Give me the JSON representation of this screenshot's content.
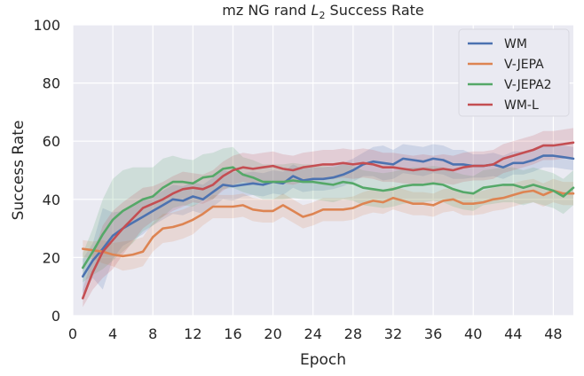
{
  "chart_data": {
    "type": "line",
    "title_prefix": "mz NG rand ",
    "title_math": "L",
    "title_sub": "2",
    "title_suffix": " Success Rate",
    "title": "mz NG rand L2 Success Rate",
    "xlabel": "Epoch",
    "ylabel": "Success Rate",
    "xlim": [
      0,
      50
    ],
    "ylim": [
      0,
      100
    ],
    "xticks": [
      0,
      4,
      8,
      12,
      16,
      20,
      24,
      28,
      32,
      36,
      40,
      44,
      48
    ],
    "yticks": [
      0,
      20,
      40,
      60,
      80,
      100
    ],
    "grid": true,
    "legend_position": "top-right",
    "x": [
      1,
      2,
      3,
      4,
      5,
      6,
      7,
      8,
      9,
      10,
      11,
      12,
      13,
      14,
      15,
      16,
      17,
      18,
      19,
      20,
      21,
      22,
      23,
      24,
      25,
      26,
      27,
      28,
      29,
      30,
      31,
      32,
      33,
      34,
      35,
      36,
      37,
      38,
      39,
      40,
      41,
      42,
      43,
      44,
      45,
      46,
      47,
      48,
      49,
      50
    ],
    "series": [
      {
        "name": "WM",
        "color": "#4c72b0",
        "values": [
          13.5,
          19,
          23,
          27.5,
          30,
          32,
          34,
          36,
          38,
          40,
          39.5,
          41,
          40,
          42.5,
          45,
          44.5,
          45,
          45.5,
          45,
          46,
          45.5,
          48,
          46.5,
          47,
          47,
          47.5,
          48.5,
          50,
          52,
          53,
          52.5,
          52,
          54,
          53.5,
          53,
          54,
          53.5,
          52,
          52,
          51.5,
          51.5,
          52,
          51,
          52.5,
          52.5,
          53.5,
          55,
          55,
          54.5,
          54
        ],
        "band": [
          6,
          6,
          14,
          8,
          6,
          6,
          6,
          5,
          5,
          5,
          5,
          5,
          5,
          5,
          5,
          5,
          4,
          4,
          4,
          4,
          4,
          4,
          4,
          4,
          4,
          4,
          4,
          4,
          4,
          5,
          6,
          5,
          5,
          5,
          5,
          5,
          5,
          5,
          5,
          4,
          4,
          4,
          4,
          4,
          4,
          4,
          4,
          4,
          4,
          4
        ]
      },
      {
        "name": "V-JEPA",
        "color": "#dd8452",
        "values": [
          23,
          22.5,
          22,
          21,
          20.5,
          21,
          22,
          27,
          30,
          30.5,
          31.5,
          33,
          35,
          37.5,
          37.5,
          37.5,
          38,
          36.5,
          36,
          36,
          38,
          36,
          34,
          35,
          36.5,
          36.5,
          36.5,
          37,
          38.5,
          39.5,
          39,
          40.5,
          39.5,
          38.5,
          38.5,
          38,
          39.5,
          40,
          38.5,
          38.5,
          39,
          40,
          40.5,
          41.5,
          42.5,
          43,
          41.5,
          43,
          42,
          42
        ],
        "band": [
          3,
          3,
          4,
          4,
          5,
          5,
          5,
          5,
          5,
          5,
          5,
          5,
          4,
          4,
          4,
          4,
          4,
          4,
          4,
          4,
          4,
          4,
          4,
          4,
          4,
          4,
          4,
          4,
          4,
          4,
          4,
          4,
          4,
          4,
          4,
          4,
          4,
          4,
          4,
          4,
          4,
          4,
          4,
          4,
          4,
          4,
          4,
          4,
          4,
          4
        ]
      },
      {
        "name": "V-JEPA2",
        "color": "#55a868",
        "values": [
          16.5,
          22,
          28,
          33,
          36,
          38,
          40,
          41,
          44,
          46,
          46,
          45.5,
          47.5,
          48,
          50.5,
          51,
          48.5,
          47.5,
          46,
          46,
          46,
          46.5,
          46,
          46,
          45.5,
          45,
          46,
          45.5,
          44,
          43.5,
          43,
          43.5,
          44.5,
          45,
          45,
          45.5,
          45,
          43.5,
          42.5,
          42,
          44,
          44.5,
          45,
          45,
          44,
          45,
          44,
          43,
          41,
          44
        ],
        "band": [
          5,
          8,
          12,
          14,
          14,
          13,
          11,
          10,
          10,
          9,
          8,
          8,
          8,
          8,
          7,
          7,
          6,
          6,
          6,
          6,
          6,
          6,
          6,
          6,
          6,
          6,
          6,
          6,
          6,
          6,
          6,
          6,
          6,
          6,
          6,
          6,
          6,
          6,
          6,
          6,
          6,
          6,
          6,
          6,
          6,
          6,
          6,
          6,
          6,
          6
        ]
      },
      {
        "name": "WM-L",
        "color": "#c44e52",
        "values": [
          6,
          15,
          22,
          26,
          30,
          33.5,
          37,
          38.5,
          40,
          42,
          43.5,
          44,
          43.5,
          45,
          48,
          50,
          51,
          50.5,
          51,
          51.5,
          50.5,
          50,
          51,
          51.5,
          52,
          52,
          52.5,
          52,
          52.5,
          52,
          51,
          51,
          50.5,
          50,
          50.5,
          50,
          50.5,
          50,
          51,
          51.5,
          51.5,
          52,
          54,
          55,
          56,
          57,
          58.5,
          58.5,
          59,
          59.5
        ],
        "band": [
          3,
          6,
          9,
          10,
          9,
          8,
          7,
          6,
          6,
          6,
          6,
          5,
          5,
          5,
          5,
          5,
          5,
          5,
          5,
          5,
          5,
          5,
          5,
          5,
          5,
          5,
          5,
          5,
          5,
          5,
          5,
          5,
          5,
          5,
          5,
          5,
          5,
          5,
          5,
          5,
          5,
          5,
          5,
          5,
          5,
          5,
          5,
          5,
          5,
          5
        ]
      }
    ]
  }
}
